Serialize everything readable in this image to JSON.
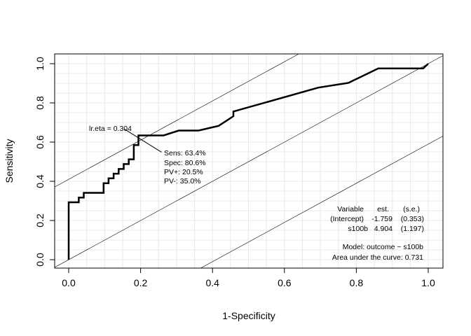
{
  "chart_data": {
    "type": "line",
    "xlabel": "1-Specificity",
    "ylabel": "Sensitivity",
    "xlim": [
      0,
      1
    ],
    "ylim": [
      0,
      1
    ],
    "xticks": [
      "0.0",
      "0.2",
      "0.4",
      "0.6",
      "0.8",
      "1.0"
    ],
    "yticks": [
      "0.0",
      "0.2",
      "0.4",
      "0.6",
      "0.8",
      "1.0"
    ],
    "grid": true,
    "series": [
      {
        "color": "#000000",
        "points": [
          [
            0.0,
            0.0
          ],
          [
            0.0,
            0.293
          ],
          [
            0.028,
            0.293
          ],
          [
            0.028,
            0.317
          ],
          [
            0.042,
            0.317
          ],
          [
            0.042,
            0.341
          ],
          [
            0.097,
            0.341
          ],
          [
            0.097,
            0.39
          ],
          [
            0.111,
            0.39
          ],
          [
            0.111,
            0.415
          ],
          [
            0.125,
            0.415
          ],
          [
            0.125,
            0.439
          ],
          [
            0.139,
            0.439
          ],
          [
            0.139,
            0.463
          ],
          [
            0.153,
            0.463
          ],
          [
            0.153,
            0.488
          ],
          [
            0.167,
            0.488
          ],
          [
            0.167,
            0.512
          ],
          [
            0.181,
            0.512
          ],
          [
            0.181,
            0.585
          ],
          [
            0.194,
            0.585
          ],
          [
            0.194,
            0.634
          ],
          [
            0.264,
            0.634
          ],
          [
            0.306,
            0.659
          ],
          [
            0.361,
            0.659
          ],
          [
            0.417,
            0.683
          ],
          [
            0.458,
            0.732
          ],
          [
            0.458,
            0.756
          ],
          [
            0.694,
            0.878
          ],
          [
            0.778,
            0.902
          ],
          [
            0.861,
            0.976
          ],
          [
            0.986,
            0.976
          ],
          [
            1.0,
            1.0
          ]
        ]
      }
    ],
    "reference_lines": [
      {
        "intercept": 0.0,
        "slope": 1
      },
      {
        "intercept": 0.41,
        "slope": 1
      },
      {
        "intercept": -0.41,
        "slope": 1
      }
    ],
    "cutoff_point": {
      "x": 0.194,
      "y": 0.634
    },
    "annotations": {
      "cutoff_label": "lr.eta = 0.304",
      "stats": [
        "Sens: 63.4%",
        "Spec: 80.6%",
        "PV+: 20.5%",
        "PV-: 35.0%"
      ]
    },
    "model_table": {
      "headers": [
        "Variable",
        "est.",
        "(s.e.)"
      ],
      "rows": [
        [
          "(Intercept)",
          "-1.759",
          "(0.353)"
        ],
        [
          "s100b",
          "4.904",
          "(1.197)"
        ]
      ],
      "model": "Model:  outcome ~ s100b",
      "auc": "Area under the curve: 0.731"
    }
  }
}
